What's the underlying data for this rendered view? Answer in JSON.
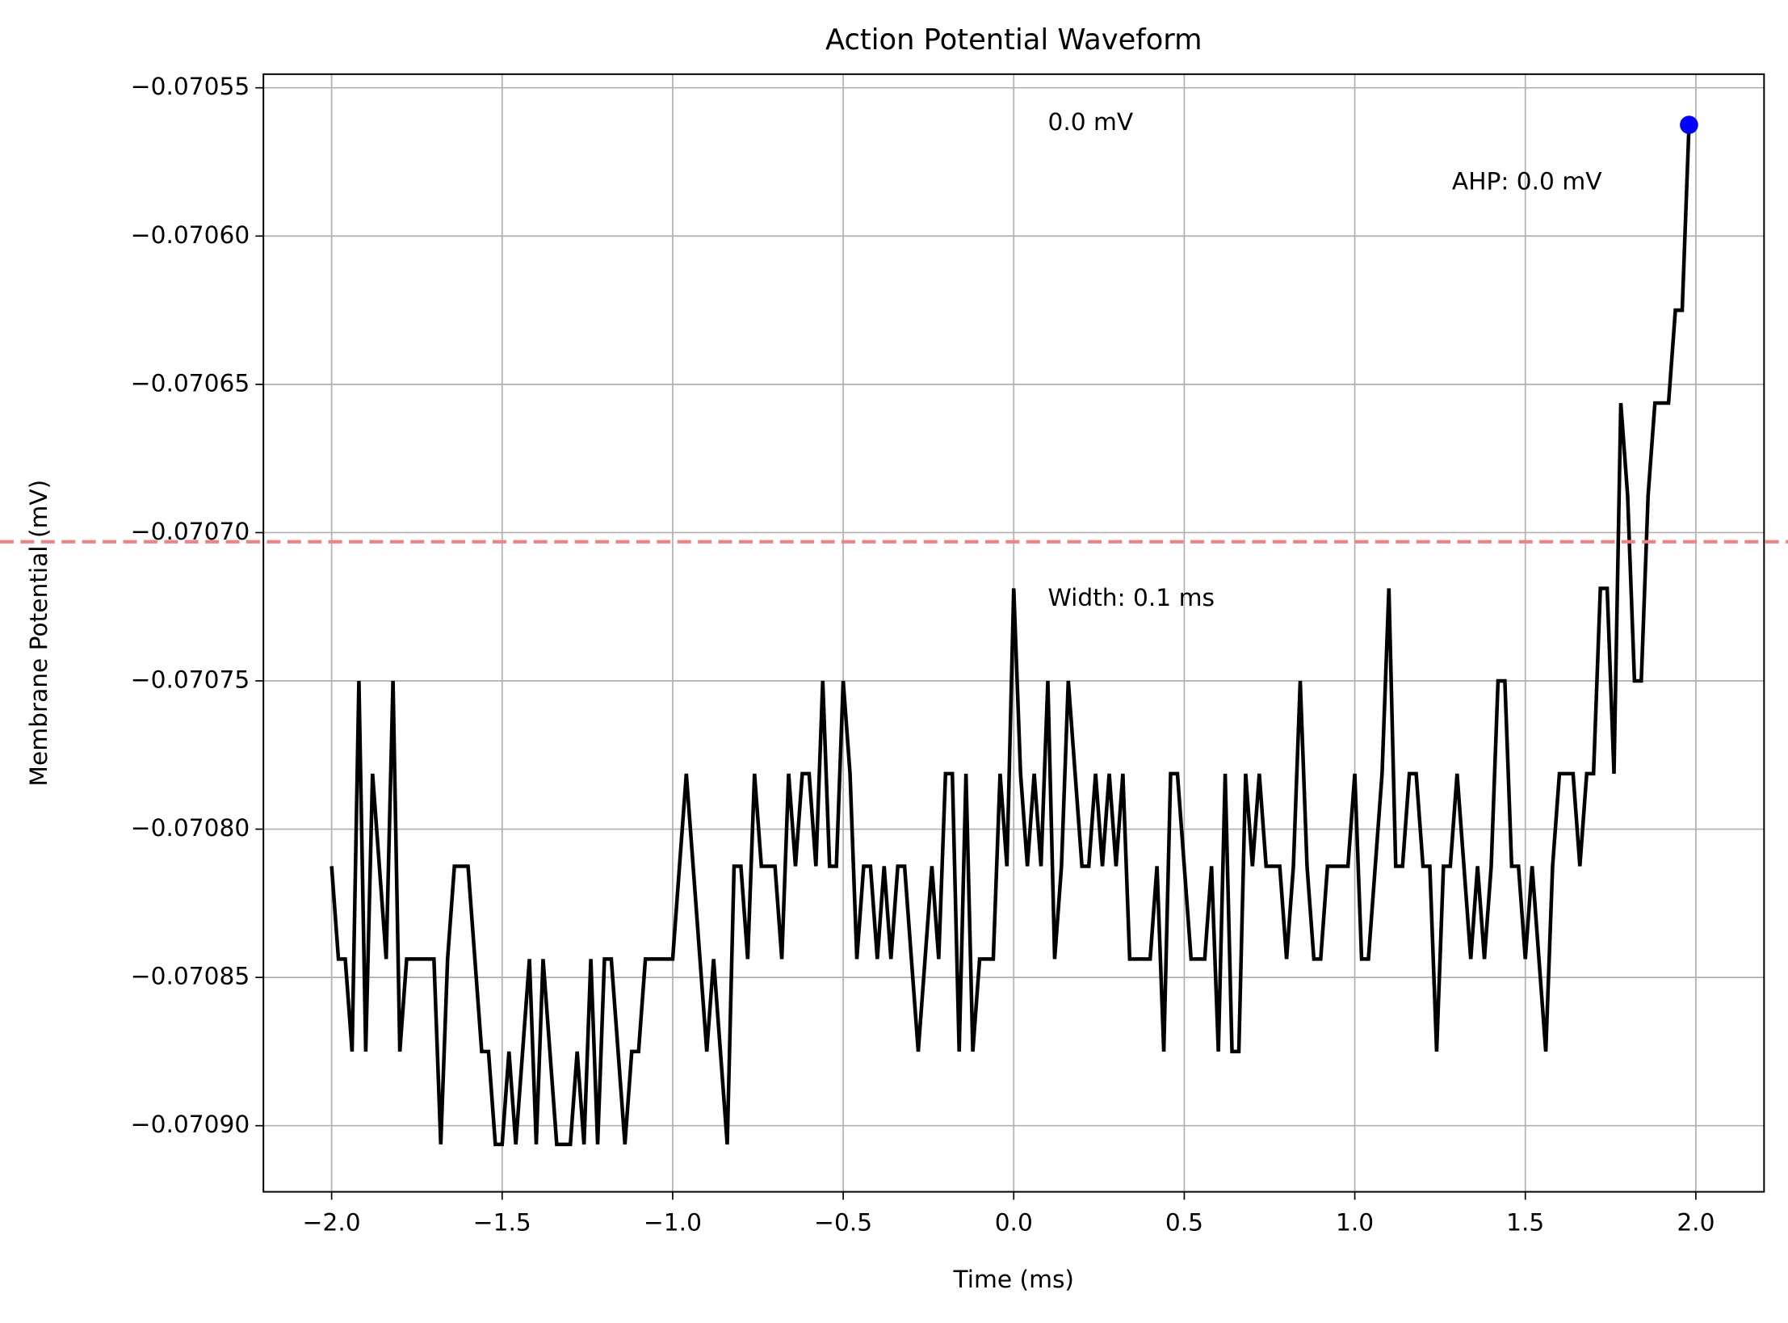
{
  "chart_data": {
    "type": "line",
    "title": "Action Potential Waveform",
    "x_label": "Time (ms)",
    "y_label": "Membrane Potential (mV)",
    "color": "#000000",
    "grid": true,
    "xlim": [
      -2.2,
      2.2
    ],
    "ylim": [
      -0.0709223,
      -0.0705454
    ],
    "xticks": [
      {
        "value": -2.0,
        "label": "−2.0"
      },
      {
        "value": -1.5,
        "label": "−1.5"
      },
      {
        "value": -1.0,
        "label": "−1.0"
      },
      {
        "value": -0.5,
        "label": "−0.5"
      },
      {
        "value": 0,
        "label": "0.0"
      },
      0.5,
      {
        "value": 1,
        "label": "1.0"
      },
      1.5,
      {
        "value": 2,
        "label": "2.0"
      }
    ],
    "yticks": [
      {
        "value": -0.07055,
        "label": "−0.07055"
      },
      {
        "value": -0.0706,
        "label": "−0.07060"
      },
      {
        "value": -0.07065,
        "label": "−0.07065"
      },
      {
        "value": -0.0707,
        "label": "−0.07070"
      },
      {
        "value": -0.07075,
        "label": "−0.07075"
      },
      {
        "value": -0.0708,
        "label": "−0.07080"
      },
      {
        "value": -0.07085,
        "label": "−0.07085"
      },
      {
        "value": -0.0709,
        "label": "−0.07090"
      }
    ],
    "x": [
      -2,
      -1.98,
      -1.96,
      -1.94,
      -1.92,
      -1.9,
      -1.88,
      -1.86,
      -1.84,
      -1.82,
      -1.8,
      -1.78,
      -1.76,
      -1.74,
      -1.72,
      -1.7,
      -1.68,
      -1.66,
      -1.64,
      -1.62,
      -1.6,
      -1.58,
      -1.56,
      -1.54,
      -1.52,
      -1.5,
      -1.48,
      -1.46,
      -1.44,
      -1.42,
      -1.4,
      -1.38,
      -1.36,
      -1.34,
      -1.32,
      -1.3,
      -1.28,
      -1.26,
      -1.24,
      -1.22,
      -1.2,
      -1.18,
      -1.16,
      -1.14,
      -1.12,
      -1.1,
      -1.08,
      -1.06,
      -1.04,
      -1.02,
      -1,
      -0.98,
      -0.96,
      -0.94,
      -0.92,
      -0.9,
      -0.88,
      -0.86,
      -0.84,
      -0.82,
      -0.8,
      -0.78,
      -0.76,
      -0.74,
      -0.72,
      -0.7,
      -0.68,
      -0.66,
      -0.64,
      -0.62,
      -0.6,
      -0.58,
      -0.56,
      -0.54,
      -0.52,
      -0.5,
      -0.48,
      -0.46,
      -0.44,
      -0.42,
      -0.4,
      -0.38,
      -0.36,
      -0.34,
      -0.32,
      -0.3,
      -0.28,
      -0.26,
      -0.24,
      -0.22,
      -0.2,
      -0.18,
      -0.16,
      -0.14,
      -0.12,
      -0.1,
      -0.08,
      -0.06,
      -0.04,
      -0.02,
      0,
      0.02,
      0.04,
      0.06,
      0.08,
      0.1,
      0.12,
      0.14,
      0.16,
      0.18,
      0.2,
      0.22,
      0.24,
      0.26,
      0.28,
      0.3,
      0.32,
      0.34,
      0.36,
      0.38,
      0.4,
      0.42,
      0.44,
      0.46,
      0.48,
      0.5,
      0.52,
      0.54,
      0.56,
      0.58,
      0.6,
      0.62,
      0.64,
      0.66,
      0.68,
      0.7,
      0.72,
      0.74,
      0.76,
      0.78,
      0.8,
      0.82,
      0.84,
      0.86,
      0.88,
      0.9,
      0.92,
      0.94,
      0.96,
      0.98,
      1,
      1.02,
      1.04,
      1.06,
      1.08,
      1.1,
      1.12,
      1.14,
      1.16,
      1.18,
      1.2,
      1.22,
      1.24,
      1.26,
      1.28,
      1.3,
      1.32,
      1.34,
      1.36,
      1.38,
      1.4,
      1.42,
      1.44,
      1.46,
      1.48,
      1.5,
      1.52,
      1.54,
      1.56,
      1.58,
      1.6,
      1.62,
      1.64,
      1.66,
      1.68,
      1.7,
      1.72,
      1.74,
      1.76,
      1.78,
      1.8,
      1.82,
      1.84,
      1.86,
      1.88,
      1.9,
      1.92,
      1.94,
      1.96,
      1.98
    ],
    "values": [
      -0.0708125,
      -0.0708438,
      -0.0708438,
      -0.070875,
      -0.07075,
      -0.070875,
      -0.0707813,
      -0.0708125,
      -0.0708438,
      -0.07075,
      -0.070875,
      -0.0708438,
      -0.0708438,
      -0.0708438,
      -0.0708438,
      -0.0708438,
      -0.0709063,
      -0.0708438,
      -0.0708125,
      -0.0708125,
      -0.0708125,
      -0.0708438,
      -0.070875,
      -0.070875,
      -0.0709063,
      -0.0709063,
      -0.070875,
      -0.0709063,
      -0.070875,
      -0.0708438,
      -0.0709063,
      -0.0708438,
      -0.070875,
      -0.0709063,
      -0.0709063,
      -0.0709063,
      -0.070875,
      -0.0709063,
      -0.0708438,
      -0.0709063,
      -0.0708438,
      -0.0708438,
      -0.070875,
      -0.0709063,
      -0.070875,
      -0.070875,
      -0.0708438,
      -0.0708438,
      -0.0708438,
      -0.0708438,
      -0.0708438,
      -0.0708125,
      -0.0707813,
      -0.0708125,
      -0.0708438,
      -0.070875,
      -0.0708438,
      -0.070875,
      -0.0709063,
      -0.0708125,
      -0.0708125,
      -0.0708438,
      -0.0707813,
      -0.0708125,
      -0.0708125,
      -0.0708125,
      -0.0708438,
      -0.0707813,
      -0.0708125,
      -0.0707813,
      -0.0707813,
      -0.0708125,
      -0.07075,
      -0.0708125,
      -0.0708125,
      -0.07075,
      -0.0707813,
      -0.0708438,
      -0.0708125,
      -0.0708125,
      -0.0708438,
      -0.0708125,
      -0.0708438,
      -0.0708125,
      -0.0708125,
      -0.0708438,
      -0.070875,
      -0.0708438,
      -0.0708125,
      -0.0708438,
      -0.0707813,
      -0.0707813,
      -0.070875,
      -0.0707813,
      -0.070875,
      -0.0708438,
      -0.0708438,
      -0.0708438,
      -0.0707813,
      -0.0708125,
      -0.0707188,
      -0.0707813,
      -0.0708125,
      -0.0707813,
      -0.0708125,
      -0.07075,
      -0.0708438,
      -0.0708125,
      -0.07075,
      -0.0707813,
      -0.0708125,
      -0.0708125,
      -0.0707813,
      -0.0708125,
      -0.0707813,
      -0.0708125,
      -0.0707813,
      -0.0708438,
      -0.0708438,
      -0.0708438,
      -0.0708438,
      -0.0708125,
      -0.070875,
      -0.0707813,
      -0.0707813,
      -0.0708125,
      -0.0708438,
      -0.0708438,
      -0.0708438,
      -0.0708125,
      -0.070875,
      -0.0707813,
      -0.070875,
      -0.070875,
      -0.0707813,
      -0.0708125,
      -0.0707813,
      -0.0708125,
      -0.0708125,
      -0.0708125,
      -0.0708438,
      -0.0708125,
      -0.07075,
      -0.0708125,
      -0.0708438,
      -0.0708438,
      -0.0708125,
      -0.0708125,
      -0.0708125,
      -0.0708125,
      -0.0707813,
      -0.0708438,
      -0.0708438,
      -0.0708125,
      -0.0707813,
      -0.0707188,
      -0.0708125,
      -0.0708125,
      -0.0707813,
      -0.0707813,
      -0.0708125,
      -0.0708125,
      -0.070875,
      -0.0708125,
      -0.0708125,
      -0.0707813,
      -0.0708125,
      -0.0708438,
      -0.0708125,
      -0.0708438,
      -0.0708125,
      -0.07075,
      -0.07075,
      -0.0708125,
      -0.0708125,
      -0.0708438,
      -0.0708125,
      -0.0708438,
      -0.070875,
      -0.0708125,
      -0.0707813,
      -0.0707813,
      -0.0707813,
      -0.0708125,
      -0.0707813,
      -0.0707813,
      -0.0707188,
      -0.0707188,
      -0.0707813,
      -0.0706563,
      -0.0706875,
      -0.07075,
      -0.07075,
      -0.0706875,
      -0.0706563,
      -0.0706563,
      -0.0706563,
      -0.070625,
      -0.070625,
      -0.0705625
    ],
    "hlines": [
      {
        "y": -0.0707031,
        "color": "#f28282"
      }
    ],
    "markers": [
      {
        "x": 1.98,
        "y": -0.0705625,
        "color": "#0000ff"
      }
    ],
    "annotations": [
      {
        "text": "0.0 mV",
        "x": 0.1,
        "y": -0.0705619
      },
      {
        "text": "AHP: 0.0 mV",
        "x": 1.285,
        "y": -0.0705819
      },
      {
        "text": "Width: 0.1 ms",
        "x": 0.1,
        "y": -0.0707223
      }
    ]
  }
}
